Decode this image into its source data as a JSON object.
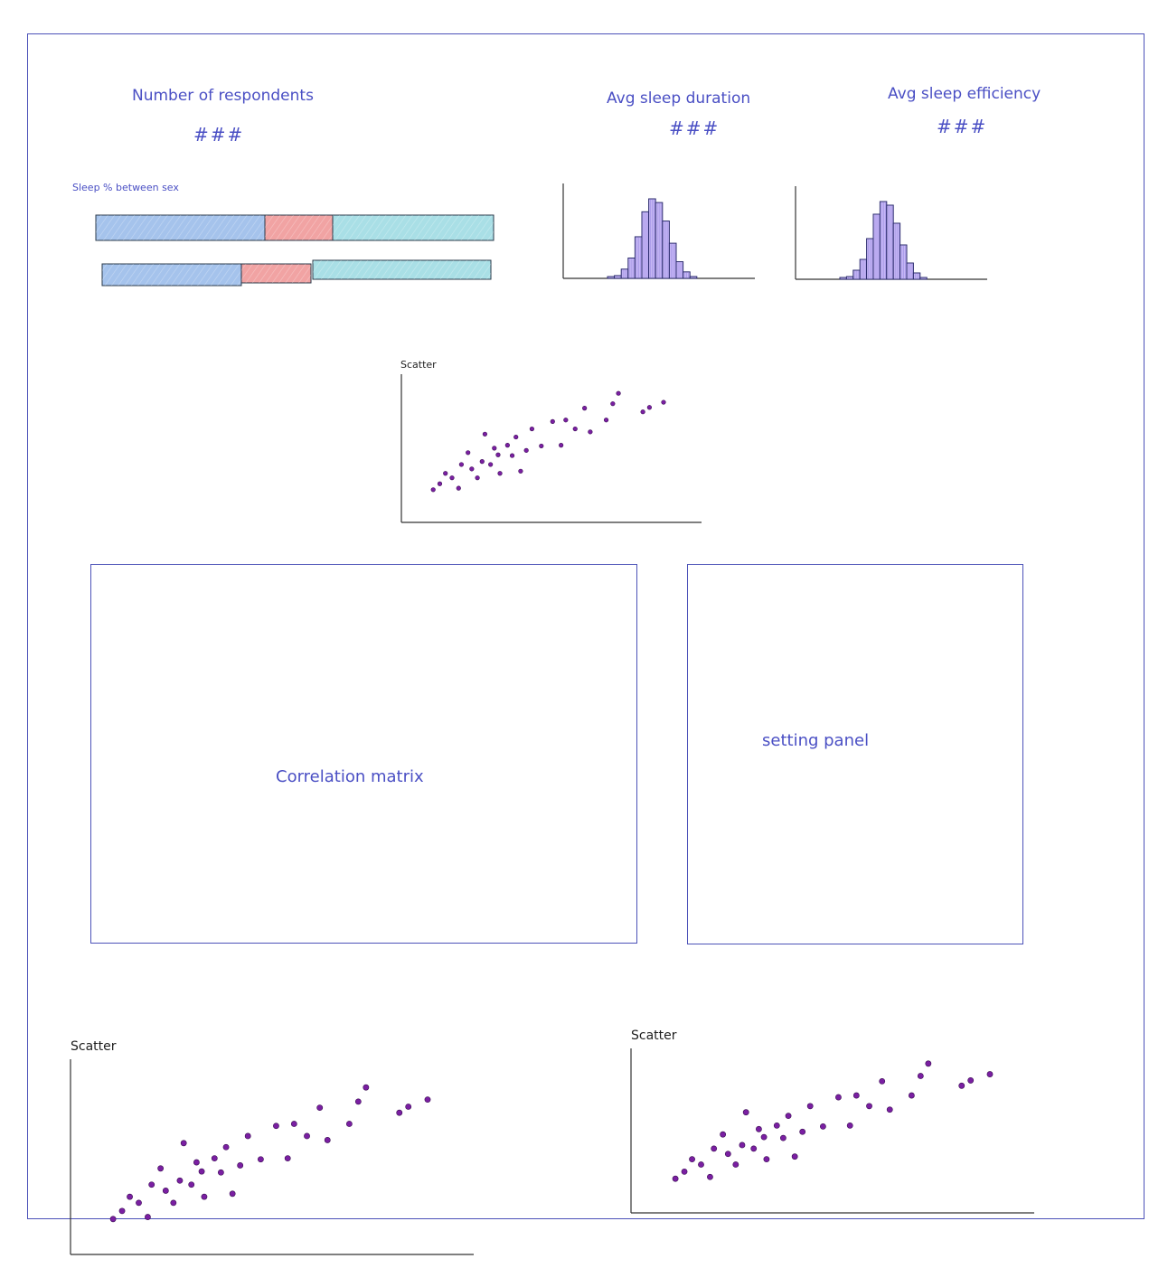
{
  "kpis": {
    "respondents": {
      "title": "Number of respondents",
      "value": "###"
    },
    "sleep_duration": {
      "title": "Avg sleep duration",
      "value": "###"
    },
    "sleep_efficiency": {
      "title": "Avg sleep efficiency",
      "value": "###"
    }
  },
  "sex_chart": {
    "title": "Sleep % between sex",
    "colors": {
      "seg1": "#a5c3ec",
      "seg2": "#f1a3a3",
      "seg3": "#a9dfe6",
      "stroke": "#2a3a4a"
    }
  },
  "histogram": {
    "bar_fill": "#c7b8f5",
    "bar_stroke": "#2b2b6e",
    "bin_counts": [
      1,
      3,
      10,
      22,
      45,
      72,
      86,
      82,
      62,
      38,
      18,
      7,
      2
    ]
  },
  "scatters": {
    "top": {
      "title": "Scatter"
    },
    "bottom_left": {
      "title": "Scatter"
    },
    "bottom_right": {
      "title": "Scatter"
    },
    "point_color": "#7a1fa2",
    "points": [
      [
        0.5,
        1.0
      ],
      [
        1.2,
        1.8
      ],
      [
        1.8,
        3.2
      ],
      [
        2.5,
        2.6
      ],
      [
        3.2,
        1.2
      ],
      [
        3.5,
        4.4
      ],
      [
        4.2,
        6.0
      ],
      [
        4.6,
        3.8
      ],
      [
        5.2,
        2.6
      ],
      [
        5.7,
        4.8
      ],
      [
        6.0,
        8.5
      ],
      [
        6.6,
        4.4
      ],
      [
        7.0,
        6.6
      ],
      [
        7.4,
        5.7
      ],
      [
        7.6,
        3.2
      ],
      [
        8.4,
        7.0
      ],
      [
        8.9,
        5.6
      ],
      [
        9.3,
        8.1
      ],
      [
        9.8,
        3.5
      ],
      [
        10.4,
        6.3
      ],
      [
        11.0,
        9.2
      ],
      [
        12.0,
        6.9
      ],
      [
        13.2,
        10.2
      ],
      [
        14.1,
        7.0
      ],
      [
        14.6,
        10.4
      ],
      [
        15.6,
        9.2
      ],
      [
        16.6,
        12.0
      ],
      [
        17.2,
        8.8
      ],
      [
        18.9,
        10.4
      ],
      [
        19.6,
        12.6
      ],
      [
        20.2,
        14.0
      ],
      [
        22.8,
        11.5
      ],
      [
        23.5,
        12.1
      ],
      [
        25.0,
        12.8
      ]
    ]
  },
  "panels": {
    "correlation": "Correlation matrix",
    "settings": "setting panel"
  },
  "colors": {
    "outline": "#4c52b8",
    "text": "#4a4fc4",
    "axis": "#333333"
  }
}
